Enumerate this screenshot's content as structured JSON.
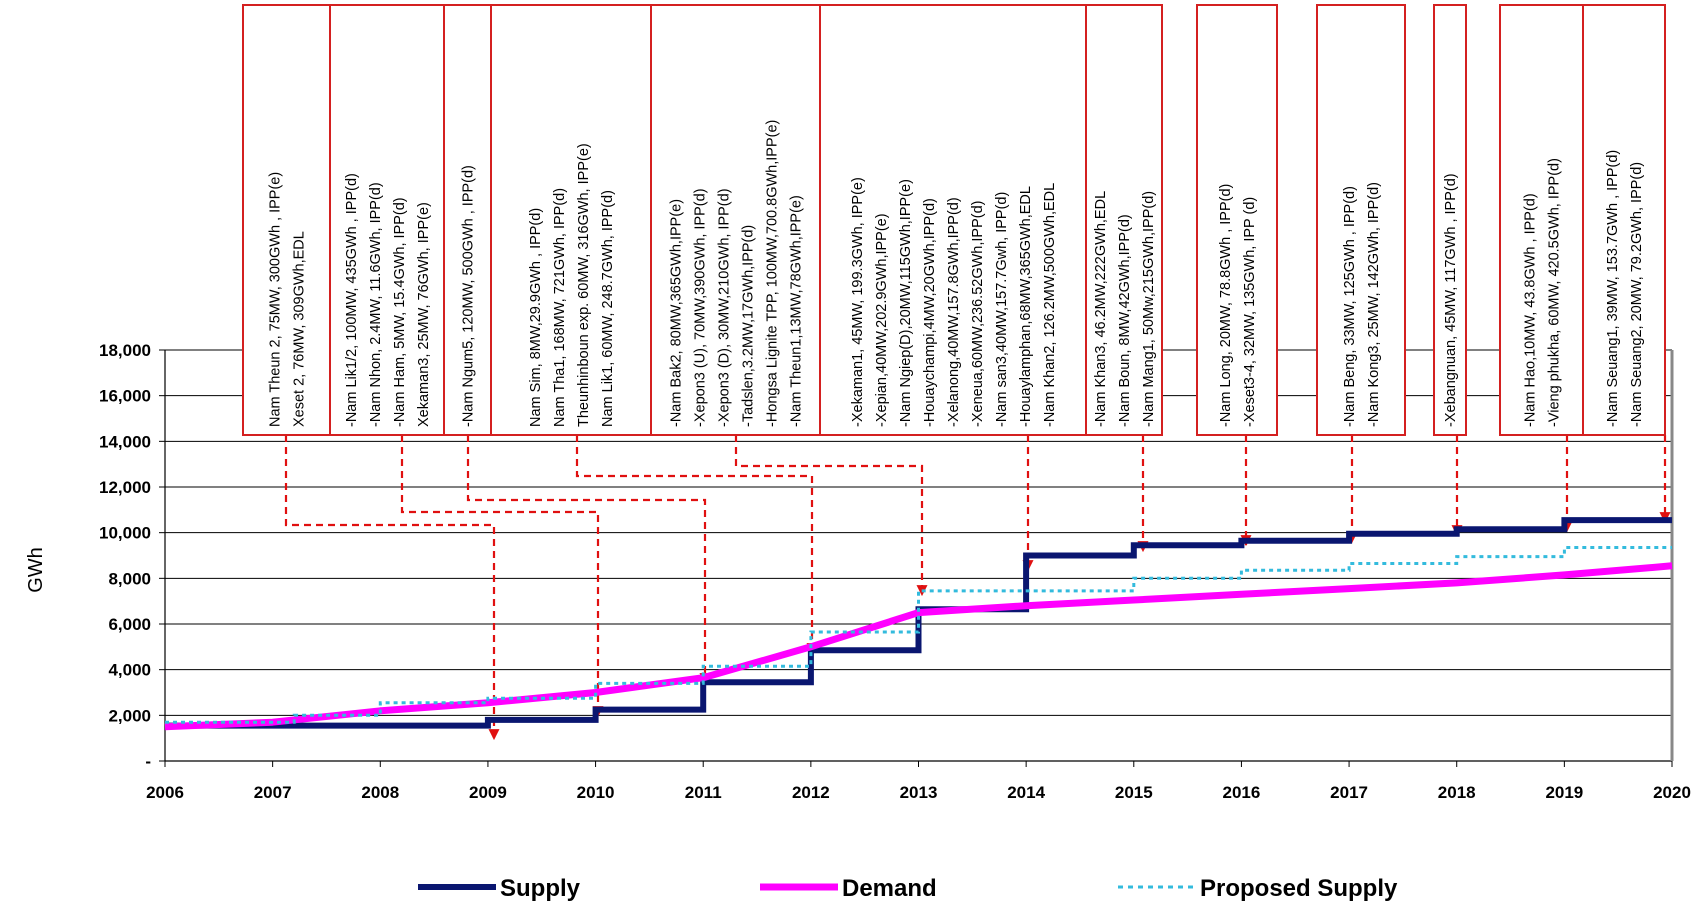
{
  "chart_data": {
    "type": "line",
    "ylabel": "GWh",
    "xlabel": "",
    "xlim": [
      2006,
      2020
    ],
    "ylim": [
      0,
      18000
    ],
    "x_ticks": [
      "2006",
      "2007",
      "2008",
      "2009",
      "2010",
      "2011",
      "2012",
      "2013",
      "2014",
      "2015",
      "2016",
      "2017",
      "2018",
      "2019",
      "2020"
    ],
    "y_ticks": [
      {
        "value": 0,
        "label": "-"
      },
      {
        "value": 2000,
        "label": "2,000"
      },
      {
        "value": 4000,
        "label": "4,000"
      },
      {
        "value": 6000,
        "label": "6,000"
      },
      {
        "value": 8000,
        "label": "8,000"
      },
      {
        "value": 10000,
        "label": "10,000"
      },
      {
        "value": 12000,
        "label": "12,000"
      },
      {
        "value": 14000,
        "label": "14,000"
      },
      {
        "value": 16000,
        "label": "16,000"
      },
      {
        "value": 18000,
        "label": "18,000"
      }
    ],
    "grid": true,
    "legend_position": "bottom",
    "series": [
      {
        "name": "Supply",
        "style": "step",
        "color": "#0a1670",
        "x": [
          2006,
          2009,
          2010,
          2011,
          2012,
          2013,
          2014,
          2015,
          2016,
          2017,
          2018,
          2019,
          2020
        ],
        "y": [
          1550,
          1800,
          2250,
          3450,
          4850,
          6650,
          9000,
          9450,
          9650,
          9950,
          10150,
          10550,
          10550
        ]
      },
      {
        "name": "Demand",
        "style": "line",
        "color": "#ff00ff",
        "x": [
          2006,
          2007,
          2008,
          2009,
          2010,
          2011,
          2012,
          2013,
          2014,
          2015,
          2016,
          2017,
          2018,
          2019,
          2020
        ],
        "y": [
          1500,
          1700,
          2200,
          2550,
          3000,
          3650,
          5000,
          6500,
          6800,
          7050,
          7300,
          7550,
          7800,
          8150,
          8550
        ]
      },
      {
        "name": "Proposed Supply",
        "style": "step-dotted",
        "color": "#33bbdd",
        "x": [
          2006,
          2007.2,
          2008,
          2009,
          2010,
          2011,
          2012,
          2013,
          2015,
          2016,
          2017,
          2018,
          2019,
          2020
        ],
        "y": [
          1700,
          2000,
          2550,
          2750,
          3400,
          4150,
          5650,
          7450,
          8000,
          8350,
          8650,
          8950,
          9350,
          9350
        ]
      }
    ],
    "projects": [
      {
        "lines": [
          "Nam Theun 2, 75MW, 300GWh , IPP(e)",
          "Xeset 2, 76MW, 309GWh,EDL"
        ]
      },
      {
        "lines": [
          "-Nam Lik1/2, 100MW, 435GWh , IPP(d)",
          "-Nam Nhon, 2.4MW, 11.6GWh, IPP(d)",
          "-Nam Ham, 5MW, 15.4GWh, IPP(d)",
          "Xekaman3, 25MW, 76GWh, IPP(e)"
        ]
      },
      {
        "lines": [
          "-Nam Ngum5, 120MW, 500GWh , IPP(d)"
        ]
      },
      {
        "lines": [
          "Nam Sim, 8MW,29.9GWh , IPP(d)",
          "Nam Tha1, 168MW, 721GWh, IPP(d)",
          "Theunhinboun exp. 60MW, 316GWh, IPP(e)",
          "Nam Lik1, 60MW, 248.7GWh, IPP(d)"
        ]
      },
      {
        "lines": [
          "-Nam Bak2, 80MW,365GWh,IPP(e)",
          "-Xepon3 (U), 70MW,390GWh, IPP(d)",
          "-Xepon3 (D), 30MW,210GWh, IPP(d)",
          "-Tadslen,3.2MW,17GWh,IPP(d)",
          "-Hongsa Lignite TPP, 100MW,700.8GWh,IPP(e)",
          "-Nam Theun1,13MW,78GWh,IPP(e)"
        ]
      },
      {
        "lines": [
          "-Xekaman1, 45MW, 199.3GWh, IPP(e)",
          "-Xepian,40MW,202.9GWh,IPP(e)",
          "-Nam Ngiep(D),20MW,115GWh,IPP(e)",
          "-Houaychampi,4MW,20GWh,IPP(d)",
          "-Xelanong,40MW,157.8GWh,IPP(d)",
          "-Xeneua,60MW,236.52GWh,IPP(d)",
          "-Nam san3,40MW,157.7Gwh, IPP(d)",
          "-Houaylamphan,68MW,365GWh,EDL",
          "-Nam Khan2, 126.2MW,500GWh,EDL"
        ]
      },
      {
        "lines": [
          "-Nam Khan3, 46.2MW,222GWh,EDL",
          "-Nam Boun, 8MW,42GWh,IPP(d)",
          "-Nam Mang1, 50Mw,215GWh,IPP(d)"
        ]
      },
      {
        "lines": [
          "-Nam Long, 20MW, 78.8GWh , IPP(d)",
          "-Xeset3-4, 32MW, 135GWh, IPP (d)"
        ]
      },
      {
        "lines": [
          "-Nam Beng, 33MW, 125GWh , IPP(d)",
          "-Nam Kong3, 25MW, 142GWh, IPP(d)"
        ]
      },
      {
        "lines": [
          "-Xebangnuan, 45MW, 117GWh , IPP(d)"
        ]
      },
      {
        "lines": [
          "-Nam Hao,10MW, 43.8GWh , IPP(d)",
          "-Vieng phukha, 60MW, 420.5GWh, IPP(d)"
        ]
      },
      {
        "lines": [
          "-Nam Seuang1, 39MW, 153.7GWh , IPP(d)",
          "-Nam Seuang2, 20MW, 79.2GWh, IPP(d)"
        ]
      }
    ]
  }
}
